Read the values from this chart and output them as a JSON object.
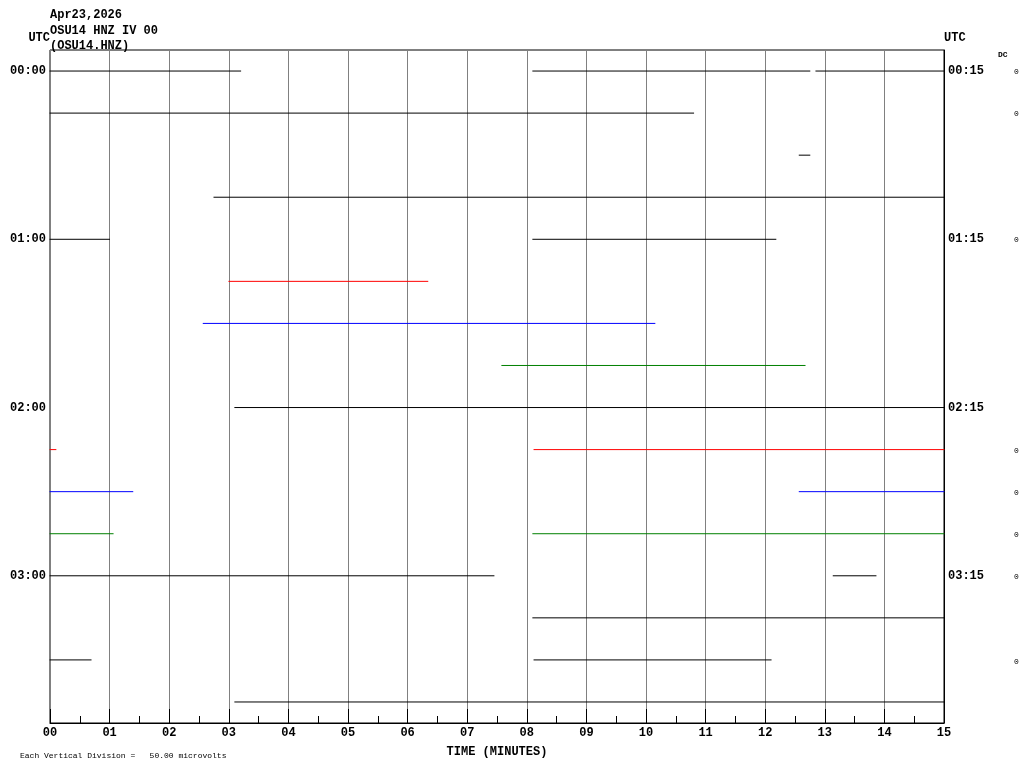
{
  "chart_data": {
    "type": "line",
    "title": "Apr23,2026",
    "subtitle": "OSU14 HNZ IV 00\n(OSU14.HNZ)",
    "xlabel": "TIME (MINUTES)",
    "ylabel": "UTC",
    "y2label": "UTC",
    "annotations": [
      "Each Vertical Division =   50.00 microvolts",
      "DC",
      "0",
      "0",
      "0",
      "0",
      "0",
      "0",
      "0",
      "0"
    ],
    "xlim": [
      0,
      15
    ],
    "xticks": [
      {
        "value": 0,
        "label": "00"
      },
      {
        "value": 1,
        "label": "01"
      },
      {
        "value": 2,
        "label": "02"
      },
      {
        "value": 3,
        "label": "03"
      },
      {
        "value": 4,
        "label": "04"
      },
      {
        "value": 5,
        "label": "05"
      },
      {
        "value": 6,
        "label": "06"
      },
      {
        "value": 7,
        "label": "07"
      },
      {
        "value": 8,
        "label": "08"
      },
      {
        "value": 9,
        "label": "09"
      },
      {
        "value": 10,
        "label": "10"
      },
      {
        "value": 11,
        "label": "11"
      },
      {
        "value": 12,
        "label": "12"
      },
      {
        "value": 13,
        "label": "13"
      },
      {
        "value": 14,
        "label": "14"
      },
      {
        "value": 15,
        "label": "15"
      }
    ],
    "ylim": [
      3.875,
      -0.125
    ],
    "yticks": [
      {
        "value": 0,
        "label": "00:00"
      },
      {
        "value": 1,
        "label": "01:00"
      },
      {
        "value": 2,
        "label": "02:00"
      },
      {
        "value": 3,
        "label": "03:00"
      }
    ],
    "y2lim": [
      4.125,
      0.125
    ],
    "y2ticks": [
      {
        "value": 0.25,
        "label": "00:15"
      },
      {
        "value": 1.25,
        "label": "01:15"
      },
      {
        "value": 2.25,
        "label": "02:15"
      },
      {
        "value": 3.25,
        "label": "03:15"
      }
    ],
    "grid": "x",
    "marker": "none",
    "line_style": "solid",
    "series": [
      {
        "color": "#000000",
        "x": [
          0,
          3.2,
          5,
          8.1,
          12.75,
          12.8,
          12.85,
          15
        ],
        "values": [
          0,
          0,
          null,
          0,
          0,
          null,
          0,
          0
        ]
      },
      {
        "color": "#000000",
        "x": [
          0,
          10.8
        ],
        "values": [
          0.25,
          0.25
        ]
      },
      {
        "color": "#000000",
        "x": [
          12.57,
          12.75
        ],
        "values": [
          0.5,
          0.5
        ]
      },
      {
        "color": "#000000",
        "x": [
          2.75,
          15
        ],
        "values": [
          0.75,
          0.75
        ]
      },
      {
        "color": "#000000",
        "x": [
          0,
          1,
          5,
          8.1,
          12.18
        ],
        "values": [
          1,
          1,
          null,
          1,
          1
        ]
      },
      {
        "color": "#ff0000",
        "x": [
          3,
          6.34
        ],
        "values": [
          1.25,
          1.25
        ]
      },
      {
        "color": "#0000ff",
        "x": [
          2.57,
          10.15
        ],
        "values": [
          1.5,
          1.5
        ]
      },
      {
        "color": "#008000",
        "x": [
          7.58,
          12.67
        ],
        "values": [
          1.75,
          1.75
        ]
      },
      {
        "color": "#000000",
        "x": [
          3.1,
          15
        ],
        "values": [
          2,
          2
        ]
      },
      {
        "color": "#ff0000",
        "x": [
          0,
          0.1,
          4,
          8.12,
          15
        ],
        "values": [
          2.25,
          2.25,
          null,
          2.25,
          2.25
        ]
      },
      {
        "color": "#0000ff",
        "x": [
          0,
          1.39,
          6,
          12.57,
          15
        ],
        "values": [
          2.5,
          2.5,
          null,
          2.5,
          2.5
        ]
      },
      {
        "color": "#008000",
        "x": [
          0,
          1.06,
          4,
          8.1,
          15
        ],
        "values": [
          2.75,
          2.75,
          null,
          2.75,
          2.75
        ]
      },
      {
        "color": "#000000",
        "x": [
          0,
          7.45,
          10,
          13.14,
          13.86
        ],
        "values": [
          3,
          3,
          null,
          3,
          3
        ]
      },
      {
        "color": "#000000",
        "x": [
          8.1,
          15
        ],
        "values": [
          3.25,
          3.25
        ]
      },
      {
        "color": "#000000",
        "x": [
          0,
          0.69,
          4,
          8.12,
          12.1
        ],
        "values": [
          3.5,
          3.5,
          null,
          3.5,
          3.5
        ]
      },
      {
        "color": "#000000",
        "x": [
          3.1,
          15
        ],
        "values": [
          3.75,
          3.75
        ]
      }
    ]
  }
}
